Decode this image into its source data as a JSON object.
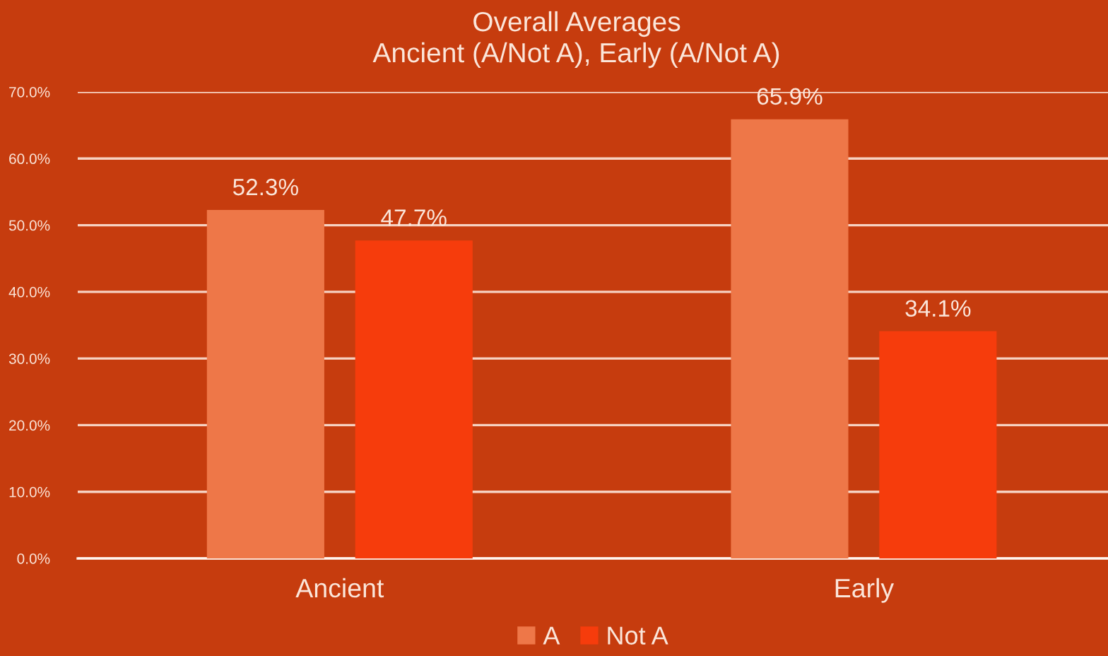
{
  "chart_data": {
    "type": "bar",
    "title": "Overall Averages",
    "subtitle": "Ancient (A/Not A), Early (A/Not A)",
    "categories": [
      "Ancient",
      "Early"
    ],
    "series": [
      {
        "name": "A",
        "color": "#ee7748",
        "values": [
          52.3,
          65.9
        ],
        "value_labels": [
          "52.3%",
          "65.9%"
        ]
      },
      {
        "name": "Not A",
        "color": "#f63c0c",
        "values": [
          47.7,
          34.1
        ],
        "value_labels": [
          "47.7%",
          "34.1%"
        ]
      }
    ],
    "ylim": [
      0,
      70
    ],
    "yticks": [
      {
        "value": 0,
        "label": "0.0%"
      },
      {
        "value": 10,
        "label": "10.0%"
      },
      {
        "value": 20,
        "label": "20.0%"
      },
      {
        "value": 30,
        "label": "30.0%"
      },
      {
        "value": 40,
        "label": "40.0%"
      },
      {
        "value": 50,
        "label": "50.0%"
      },
      {
        "value": 60,
        "label": "60.0%"
      },
      {
        "value": 70,
        "label": "70.0%"
      }
    ],
    "grid": "y",
    "legend": "bottom"
  }
}
